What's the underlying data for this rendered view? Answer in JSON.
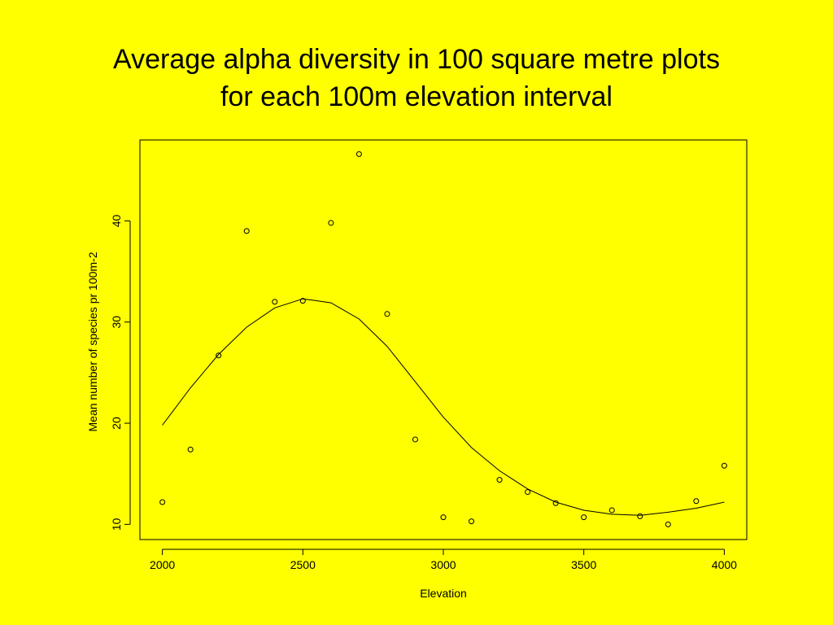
{
  "slide": {
    "title_line1": "Average alpha diversity in 100 square metre plots",
    "title_line2": "for each 100m elevation interval"
  },
  "chart_data": {
    "type": "scatter",
    "title": "Average alpha diversity in 100 square metre plots for each 100m elevation interval",
    "xlabel": "Elevation",
    "ylabel": "Mean number of species pr 100m-2",
    "xlim": [
      1920,
      4080
    ],
    "ylim": [
      8.5,
      48.0
    ],
    "xticks": [
      2000,
      2500,
      3000,
      3500,
      4000
    ],
    "yticks": [
      10,
      20,
      30,
      40
    ],
    "grid": false,
    "legend": "none",
    "points": {
      "x": [
        2000,
        2100,
        2200,
        2300,
        2400,
        2500,
        2600,
        2700,
        2800,
        2900,
        3000,
        3100,
        3200,
        3300,
        3400,
        3500,
        3600,
        3700,
        3800,
        3900,
        4000
      ],
      "y": [
        12.2,
        17.4,
        26.7,
        39.0,
        32.0,
        32.1,
        39.8,
        46.6,
        30.8,
        18.4,
        10.7,
        10.3,
        14.4,
        13.2,
        12.1,
        10.7,
        11.4,
        10.8,
        10.0,
        12.3,
        15.8
      ]
    },
    "smooth_line": {
      "x": [
        2000,
        2100,
        2200,
        2300,
        2400,
        2500,
        2600,
        2700,
        2800,
        2900,
        3000,
        3100,
        3200,
        3300,
        3400,
        3500,
        3600,
        3700,
        3800,
        3900,
        4000
      ],
      "y": [
        19.8,
        23.5,
        26.8,
        29.5,
        31.4,
        32.3,
        31.9,
        30.3,
        27.6,
        24.1,
        20.6,
        17.6,
        15.3,
        13.5,
        12.2,
        11.4,
        11.0,
        10.9,
        11.2,
        11.6,
        12.2
      ]
    },
    "colors": {
      "background": "#FFFF00",
      "ink": "#000000"
    }
  }
}
